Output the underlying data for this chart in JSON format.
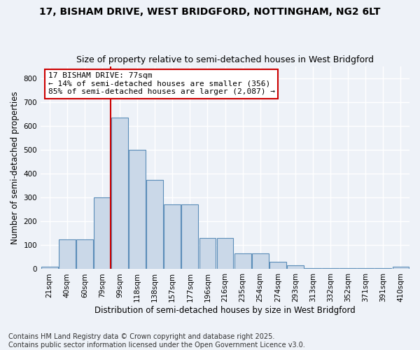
{
  "title1": "17, BISHAM DRIVE, WEST BRIDGFORD, NOTTINGHAM, NG2 6LT",
  "title2": "Size of property relative to semi-detached houses in West Bridgford",
  "xlabel": "Distribution of semi-detached houses by size in West Bridgford",
  "ylabel": "Number of semi-detached properties",
  "footnote1": "Contains HM Land Registry data © Crown copyright and database right 2025.",
  "footnote2": "Contains public sector information licensed under the Open Government Licence v3.0.",
  "bin_labels": [
    "21sqm",
    "40sqm",
    "60sqm",
    "79sqm",
    "99sqm",
    "118sqm",
    "138sqm",
    "157sqm",
    "177sqm",
    "196sqm",
    "216sqm",
    "235sqm",
    "254sqm",
    "274sqm",
    "293sqm",
    "313sqm",
    "332sqm",
    "352sqm",
    "371sqm",
    "391sqm",
    "410sqm"
  ],
  "values": [
    10,
    125,
    125,
    300,
    635,
    500,
    375,
    270,
    270,
    130,
    130,
    65,
    65,
    30,
    15,
    5,
    5,
    3,
    3,
    3,
    10
  ],
  "bar_color": "#cad8e8",
  "bar_edge_color": "#5b8db8",
  "property_label": "17 BISHAM DRIVE: 77sqm",
  "annotation_line1": "← 14% of semi-detached houses are smaller (356)",
  "annotation_line2": "85% of semi-detached houses are larger (2,087) →",
  "annotation_box_color": "#ffffff",
  "annotation_box_edge": "#cc0000",
  "vline_color": "#cc0000",
  "vline_bin_index": 3,
  "ylim": [
    0,
    850
  ],
  "yticks": [
    0,
    100,
    200,
    300,
    400,
    500,
    600,
    700,
    800
  ],
  "bg_color": "#eef2f8",
  "grid_color": "#ffffff",
  "title1_fontsize": 10,
  "title2_fontsize": 9,
  "axis_label_fontsize": 8.5,
  "tick_fontsize": 7.5,
  "footnote_fontsize": 7
}
